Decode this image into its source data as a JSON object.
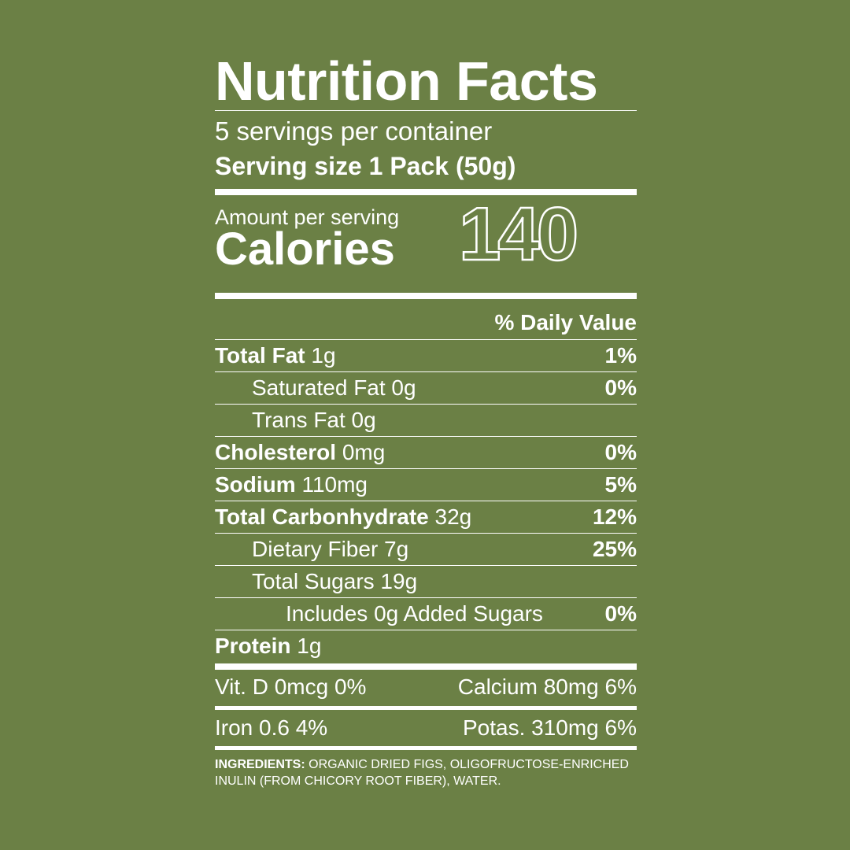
{
  "label": {
    "title": "Nutrition Facts",
    "servings_per_container": "5 servings per container",
    "serving_size": "Serving size 1 Pack (50g)",
    "amount_per_serving": "Amount per serving",
    "calories_label": "Calories",
    "calories_value": "140",
    "daily_value_header": "% Daily Value",
    "nutrients": [
      {
        "name": "Total Fat",
        "amount": "1g",
        "dv": "1%"
      },
      {
        "name": "",
        "amount": "Saturated Fat 0g",
        "dv": "0%"
      },
      {
        "name": "",
        "amount": "Trans Fat 0g",
        "dv": ""
      },
      {
        "name": "Cholesterol",
        "amount": "0mg",
        "dv": "0%"
      },
      {
        "name": "Sodium",
        "amount": "110mg",
        "dv": "5%"
      },
      {
        "name": "Total Carbonhydrate",
        "amount": "32g",
        "dv": "12%"
      },
      {
        "name": "",
        "amount": "Dietary Fiber 7g",
        "dv": "25%"
      },
      {
        "name": "",
        "amount": "Total Sugars 19g",
        "dv": ""
      },
      {
        "name": "",
        "amount": "Includes 0g Added Sugars",
        "dv": "0%"
      },
      {
        "name": "Protein",
        "amount": "1g",
        "dv": ""
      }
    ],
    "vitamins": {
      "vit_d": "Vit. D 0mcg 0%",
      "calcium": "Calcium 80mg 6%",
      "iron": "Iron 0.6 4%",
      "potassium": "Potas. 310mg 6%"
    },
    "ingredients_label": "INGREDIENTS:",
    "ingredients_text": "ORGANIC DRIED FIGS, OLIGOFRUCTOSE-ENRICHED INULIN (FROM CHICORY ROOT FIBER), WATER."
  },
  "colors": {
    "background": "#6b8045",
    "text": "#ffffff"
  }
}
